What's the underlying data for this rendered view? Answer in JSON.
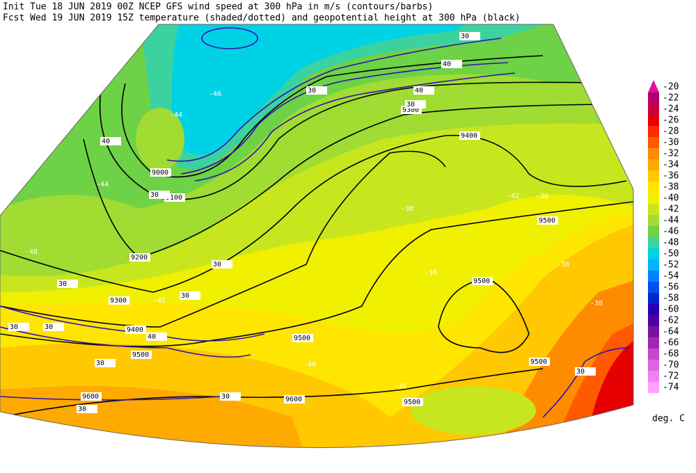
{
  "header": {
    "line1": "Init  Tue 18 JUN 2019 00Z  NCEP GFS wind speed at 300 hPa in m/s (contours/barbs)",
    "line2": "Fcst Wed 19 JUN 2019 15Z  temperature (shaded/dotted) and geopotential height at 300 hPa (black)"
  },
  "colorbar": {
    "levels": [
      -20,
      -22,
      -24,
      -26,
      -28,
      -30,
      -32,
      -34,
      -36,
      -38,
      -40,
      -42,
      -44,
      -46,
      -48,
      -50,
      -52,
      -54,
      -56,
      -58,
      -60,
      -62,
      -64,
      -66,
      -68,
      -70,
      -72,
      -74
    ],
    "colors": [
      "#e0109a",
      "#b4006e",
      "#c80040",
      "#e60000",
      "#ff2800",
      "#ff5a00",
      "#ff8c00",
      "#ffaa00",
      "#ffc800",
      "#ffe600",
      "#f0f000",
      "#c8e61e",
      "#a0dc32",
      "#6ed246",
      "#3cd2a0",
      "#00d2e6",
      "#00b4ff",
      "#0082ff",
      "#0050f0",
      "#0028c8",
      "#2800b4",
      "#5000a0",
      "#7814a0",
      "#a028b4",
      "#c846c8",
      "#dc64dc",
      "#f082f0",
      "#ffa0ff"
    ],
    "unit": "deg. C"
  },
  "height_labels": [
    9000,
    9100,
    9200,
    9300,
    9300,
    9400,
    9400,
    9500,
    9500,
    9500,
    9500,
    9500,
    9500,
    9600,
    9600
  ],
  "wind_labels": [
    30,
    40,
    30,
    40,
    30,
    30,
    40,
    30,
    30,
    30,
    30,
    30,
    30,
    40,
    30,
    30,
    30
  ],
  "temp_labels": [
    -44,
    -46,
    -48,
    -44,
    -42,
    -40,
    -38,
    -38,
    -40,
    -42,
    -36,
    -38,
    -40,
    -38,
    -36,
    -40
  ]
}
